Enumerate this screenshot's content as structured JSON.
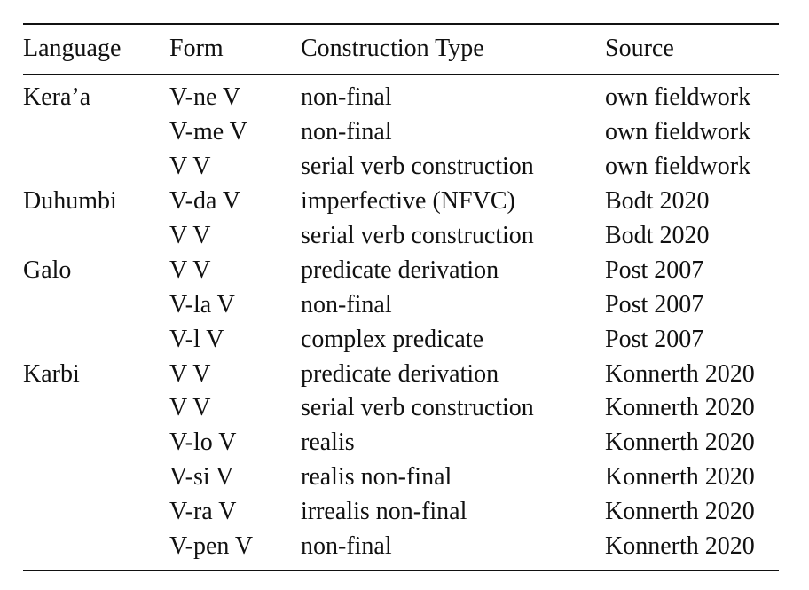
{
  "table": {
    "headers": {
      "language": "Language",
      "form": "Form",
      "construction_type": "Construction Type",
      "source": "Source"
    },
    "rows": [
      {
        "language": "Kera’a",
        "form": "V-ne V",
        "construction_type": "non-final",
        "source": "own fieldwork"
      },
      {
        "language": "",
        "form": "V-me V",
        "construction_type": "non-final",
        "source": "own fieldwork"
      },
      {
        "language": "",
        "form": "V V",
        "construction_type": "serial verb construction",
        "source": "own fieldwork"
      },
      {
        "language": "Duhumbi",
        "form": "V-da V",
        "construction_type": "imperfective (NFVC)",
        "source": "Bodt 2020"
      },
      {
        "language": "",
        "form": "V V",
        "construction_type": "serial verb construction",
        "source": "Bodt 2020"
      },
      {
        "language": "Galo",
        "form": "V V",
        "construction_type": "predicate derivation",
        "source": "Post 2007"
      },
      {
        "language": "",
        "form": "V-la V",
        "construction_type": "non-final",
        "source": "Post 2007"
      },
      {
        "language": "",
        "form": "V-l V",
        "construction_type": "complex predicate",
        "source": "Post 2007"
      },
      {
        "language": "Karbi",
        "form": "V V",
        "construction_type": "predicate derivation",
        "source": "Konnerth 2020"
      },
      {
        "language": "",
        "form": "V V",
        "construction_type": "serial verb construction",
        "source": "Konnerth 2020"
      },
      {
        "language": "",
        "form": "V-lo V",
        "construction_type": "realis",
        "source": "Konnerth 2020"
      },
      {
        "language": "",
        "form": "V-si V",
        "construction_type": "realis non-final",
        "source": "Konnerth 2020"
      },
      {
        "language": "",
        "form": "V-ra V",
        "construction_type": "irrealis non-final",
        "source": "Konnerth 2020"
      },
      {
        "language": "",
        "form": "V-pen V",
        "construction_type": "non-final",
        "source": "Konnerth 2020"
      }
    ]
  }
}
